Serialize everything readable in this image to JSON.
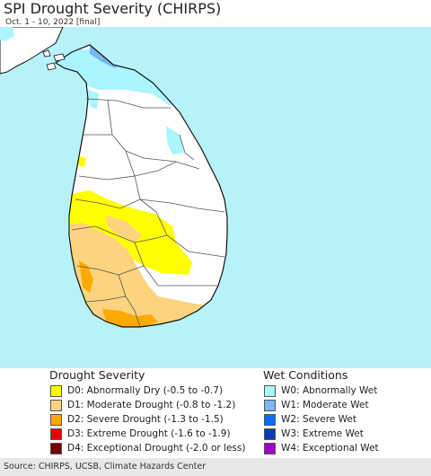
{
  "title": "SPI Drought Severity (CHIRPS)",
  "subtitle": "Oct. 1 - 10, 2022 [final]",
  "map": {
    "ocean_color": "#b8f2f8",
    "land_color": "#ffffff",
    "boundary_color": "#555555",
    "coast_color": "#111111"
  },
  "legend": {
    "drought": {
      "heading": "Drought Severity",
      "items": [
        {
          "label": "D0: Abnormally Dry (-0.5 to -0.7)",
          "color": "#ffff00"
        },
        {
          "label": "D1: Moderate Drought (-0.8 to -1.2)",
          "color": "#fcd37f"
        },
        {
          "label": "D2: Severe Drought (-1.3 to -1.5)",
          "color": "#ffaa00"
        },
        {
          "label": "D3: Extreme Drought (-1.6 to -1.9)",
          "color": "#e60000"
        },
        {
          "label": "D4: Exceptional Drought (-2.0 or less)",
          "color": "#730000"
        }
      ]
    },
    "wet": {
      "heading": "Wet Conditions",
      "items": [
        {
          "label": "W0: Abnormally Wet",
          "color": "#aaf5ff"
        },
        {
          "label": "W1: Moderate Wet",
          "color": "#7ab6f5"
        },
        {
          "label": "W2: Severe Wet",
          "color": "#0a6cff"
        },
        {
          "label": "W3: Extreme Wet",
          "color": "#0a3cb4"
        },
        {
          "label": "W4: Exceptional Wet",
          "color": "#a000c8"
        }
      ]
    }
  },
  "footer": "Source: CHIRPS, UCSB, Climate Hazards Center"
}
